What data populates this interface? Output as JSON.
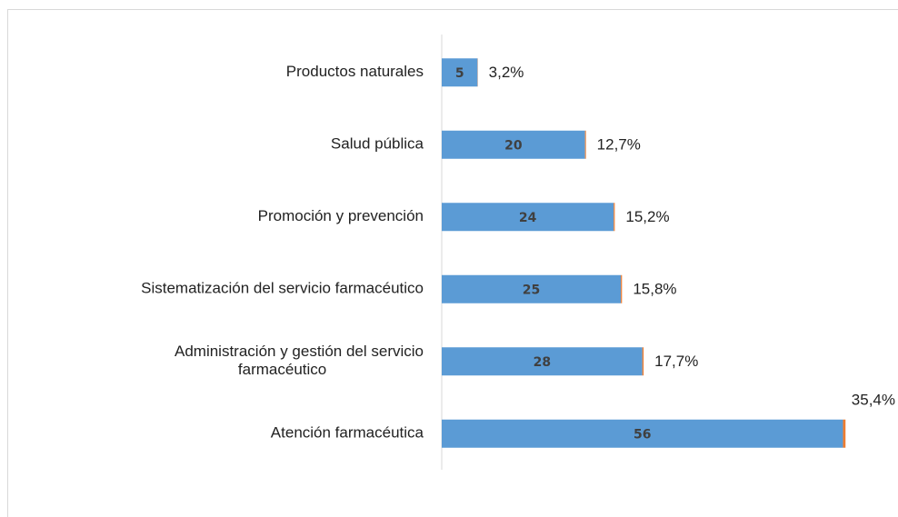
{
  "chart_data": {
    "type": "bar",
    "orientation": "horizontal",
    "stacked": true,
    "categories": [
      "Productos naturales",
      "Salud pública",
      "Promoción y prevención",
      "Sistematización del servicio farmacéutico",
      "Administración y gestión del servicio farmacéutico",
      "Atención farmacéutica"
    ],
    "series": [
      {
        "color": "#5b9bd5",
        "values": [
          5,
          20,
          24,
          25,
          28,
          56
        ]
      },
      {
        "color": "#ed7d31",
        "values": [
          0.032,
          0.127,
          0.152,
          0.158,
          0.177,
          0.354
        ],
        "value_labels": [
          "3,2%",
          "12,7%",
          "15,2%",
          "15,8%",
          "17,7%",
          "35,4%"
        ]
      }
    ],
    "xlim": [
      0,
      60
    ]
  }
}
